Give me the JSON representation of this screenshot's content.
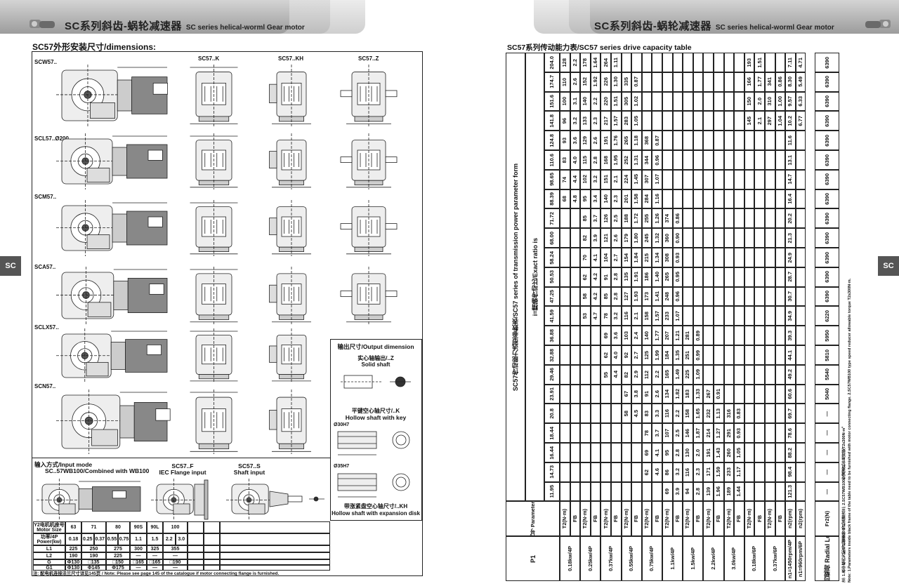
{
  "left_page": {
    "header": {
      "title_cn": "SC系列斜齿-蜗轮减速器",
      "title_en": "SC series helical-worml Gear motor",
      "icon": "gear-motor-icon"
    },
    "section_title": "SC57外形安装尺寸/dimensions:",
    "side_tab": "SC",
    "views": {
      "scw": "SCW57..",
      "k": "SC57..K",
      "kh": "SC57..KH",
      "z": "SC57..Z",
      "scl": "SCL57..Ø200",
      "scm": "SCM57..",
      "sca": "SCA57..",
      "sclx": "SCLX57..",
      "scn": "SCN57.."
    },
    "output_box": {
      "title": "输出尺寸/Output dimension",
      "solid_cn": "实心轴输出/..Z",
      "solid_en": "Solid shaft",
      "hollow_key_cn": "平键空心轴尺寸/..K",
      "hollow_key_en": "Hollow shaft with key",
      "bore1": "Ø30H7",
      "bore2": "Ø35H7",
      "hollow_disk_cn": "带涨紧盘空心轴尺寸/..KH",
      "hollow_disk_en": "Hollow shaft with expansion disk"
    },
    "input_mode": {
      "title": "输入方式/Input mode",
      "wb_label": "SC..57WB100/Combined with WB100",
      "f_label": "SC57..F",
      "f_sub": "IEC Flange input",
      "s_label": "SC57..S",
      "s_sub": "Shaft input"
    },
    "motor_table": {
      "row_headers": [
        "Y2电机机座号 Motor Size",
        "功率/4P Power(kw)",
        "L1",
        "L2",
        "G",
        "G1"
      ],
      "sizes": [
        "63",
        "71",
        "80",
        "90S",
        "90L",
        "100"
      ],
      "powers": [
        "0.18",
        "0.25",
        "0.37",
        "0.55",
        "0.75",
        "1.1",
        "1.5",
        "2.2",
        "3.0"
      ],
      "L1": [
        "225",
        "250",
        "275",
        "300",
        "325",
        "355"
      ],
      "L2": [
        "190",
        "190",
        "225",
        "—",
        "—",
        "—"
      ],
      "G": [
        "Φ130",
        "□135",
        "□150",
        "□165",
        "□165",
        "□190"
      ],
      "G1": [
        "Φ130",
        "Φ145",
        "Φ175",
        "—",
        "—",
        "—"
      ]
    },
    "note": "注: 配电机连接法兰尺寸详见145页 / Note: Please see page 145 of the catalogue if motor connecting flange is furnished."
  },
  "right_page": {
    "header": {
      "title_cn": "SC系列斜齿-蜗轮减速器",
      "title_en": "SC series helical-worml Gear motor",
      "icon": "gear-motor-icon"
    },
    "side_tab": "SC",
    "table_title": "SC57系列传动能力表/SC57 series drive capacity table",
    "vertical_title": "SC57传动能力选型参数表/SC57 series of transmission power parameter form",
    "exact_ratio_label": "i=精确传动比/Exact ratio is",
    "param_code_label": "参数代号 Parameter code",
    "p1_label": "P1",
    "powers": [
      "0.18kw/4P",
      "0.25kw/4P",
      "0.37kw/4P",
      "0.55kw/4P",
      "0.75kw/4P",
      "1.1kw/4P",
      "1.5kw/4P",
      "2.2kw/4P",
      "3.0kw/4P",
      "0.18kw/6P",
      "0.37kw/6P"
    ],
    "speed_labels": [
      "n1=1450rpm/4P",
      "n1=960rpm/6P"
    ],
    "param_labels": {
      "torque": "T2(N·m)",
      "fb": "FB",
      "speed": "n2(rpm)",
      "radial": "Fr2(N)"
    },
    "radial_load_label": "径向载荷 Radial Load",
    "rows": [
      [
        "204.0",
        "128",
        "2.2",
        "178",
        "1.64",
        "264",
        "1.11",
        "",
        "",
        "",
        "",
        "",
        "",
        "",
        "",
        "",
        "",
        "",
        "",
        "193",
        "1.51",
        "",
        "",
        "7.11",
        "4.71",
        "6390"
      ],
      [
        "174.7",
        "110",
        "2.6",
        "152",
        "1.92",
        "226",
        "1.30",
        "335",
        "0.87",
        "",
        "",
        "",
        "",
        "",
        "",
        "",
        "",
        "",
        "",
        "166",
        "1.77",
        "341",
        "0.86",
        "8.30",
        "5.49",
        "6390"
      ],
      [
        "151.6",
        "100",
        "3.1",
        "140",
        "2.2",
        "220",
        "1.51",
        "305",
        "1.02",
        "",
        "",
        "",
        "",
        "",
        "",
        "",
        "",
        "",
        "",
        "150",
        "2.0",
        "310",
        "1.00",
        "9.57",
        "6.33",
        "6390"
      ],
      [
        "141.8",
        "96",
        "3.2",
        "133",
        "2.3",
        "217",
        "1.57",
        "283",
        "1.05",
        "",
        "",
        "",
        "",
        "",
        "",
        "",
        "",
        "",
        "",
        "145",
        "2.1",
        "297",
        "1.04",
        "10.2",
        "6.77",
        "6390"
      ],
      [
        "124.8",
        "93",
        "3.6",
        "129",
        "2.6",
        "191",
        "1.76",
        "265",
        "1.18",
        "368",
        "0.87",
        "",
        "",
        "",
        "",
        "",
        "",
        "",
        "",
        "",
        "",
        "",
        "",
        "11.6",
        "",
        "6390"
      ],
      [
        "110.6",
        "83",
        "4.0",
        "115",
        "2.8",
        "168",
        "1.95",
        "252",
        "1.31",
        "344",
        "0.96",
        "",
        "",
        "",
        "",
        "",
        "",
        "",
        "",
        "",
        "",
        "",
        "",
        "13.1",
        "",
        "6390"
      ],
      [
        "98.65",
        "74",
        "4.4",
        "102",
        "3.2",
        "151",
        "2.1",
        "224",
        "1.45",
        "307",
        "1.07",
        "",
        "",
        "",
        "",
        "",
        "",
        "",
        "",
        "",
        "",
        "",
        "",
        "14.7",
        "",
        "6390"
      ],
      [
        "88.39",
        "68",
        "4.8",
        "95",
        "3.4",
        "140",
        "2.3",
        "201",
        "1.58",
        "284",
        "1.16",
        "",
        "",
        "",
        "",
        "",
        "",
        "",
        "",
        "",
        "",
        "",
        "",
        "16.4",
        "",
        "6390"
      ],
      [
        "71.72",
        "",
        "",
        "85",
        "3.7",
        "126",
        "2.5",
        "188",
        "1.72",
        "255",
        "1.26",
        "374",
        "0.86",
        "",
        "",
        "",
        "",
        "",
        "",
        "",
        "",
        "",
        "",
        "20.2",
        "",
        "6390"
      ],
      [
        "68.00",
        "",
        "",
        "82",
        "3.9",
        "121",
        "2.6",
        "179",
        "1.80",
        "245",
        "1.32",
        "360",
        "0.90",
        "",
        "",
        "",
        "",
        "",
        "",
        "",
        "",
        "",
        "",
        "21.3",
        "",
        "6390"
      ],
      [
        "58.24",
        "",
        "",
        "70",
        "4.1",
        "104",
        "2.7",
        "154",
        "1.84",
        "215",
        "1.34",
        "308",
        "0.93",
        "",
        "",
        "",
        "",
        "",
        "",
        "",
        "",
        "",
        "",
        "24.9",
        "",
        "6390"
      ],
      [
        "50.53",
        "",
        "",
        "62",
        "4.2",
        "91",
        "2.8",
        "135",
        "1.91",
        "186",
        "1.40",
        "265",
        "0.95",
        "",
        "",
        "",
        "",
        "",
        "",
        "",
        "",
        "",
        "",
        "28.7",
        "",
        "6390"
      ],
      [
        "47.25",
        "",
        "",
        "58",
        "4.2",
        "85",
        "2.8",
        "127",
        "1.93",
        "173",
        "1.41",
        "248",
        "0.96",
        "",
        "",
        "",
        "",
        "",
        "",
        "",
        "",
        "",
        "",
        "30.7",
        "",
        "6390"
      ],
      [
        "41.59",
        "",
        "",
        "53",
        "4.7",
        "78",
        "3.2",
        "116",
        "2.1",
        "158",
        "1.57",
        "233",
        "1.07",
        "",
        "",
        "",
        "",
        "",
        "",
        "",
        "",
        "",
        "",
        "34.9",
        "",
        "6220"
      ],
      [
        "36.88",
        "",
        "",
        "",
        "",
        "69",
        "3.6",
        "103",
        "2.4",
        "140",
        "1.77",
        "207",
        "1.21",
        "281",
        "0.89",
        "",
        "",
        "",
        "",
        "",
        "",
        "",
        "",
        "39.3",
        "",
        "5950"
      ],
      [
        "32.88",
        "",
        "",
        "",
        "",
        "62",
        "4.0",
        "92",
        "2.7",
        "125",
        "1.99",
        "184",
        "1.35",
        "251",
        "0.99",
        "",
        "",
        "",
        "",
        "",
        "",
        "",
        "",
        "44.1",
        "",
        "5810"
      ],
      [
        "29.46",
        "",
        "",
        "",
        "",
        "55",
        "4.4",
        "82",
        "2.9",
        "112",
        "2.2",
        "165",
        "1.49",
        "225",
        "1.09",
        "",
        "",
        "",
        "",
        "",
        "",
        "",
        "",
        "49.2",
        "",
        "5540"
      ],
      [
        "23.91",
        "",
        "",
        "",
        "",
        "",
        "",
        "67",
        "3.8",
        "91",
        "2.6",
        "134",
        "1.82",
        "183",
        "1.33",
        "267",
        "0.91",
        "",
        "",
        "",
        "",
        "",
        "",
        "60.6",
        "",
        "5040"
      ],
      [
        "20.8",
        "",
        "",
        "",
        "",
        "",
        "",
        "58",
        "4.5",
        "83",
        "3.3",
        "116",
        "2.2",
        "158",
        "1.65",
        "232",
        "1.13",
        "316",
        "0.83",
        "",
        "",
        "",
        "",
        "69.7",
        "",
        "—"
      ],
      [
        "18.44",
        "",
        "",
        "",
        "",
        "",
        "",
        "",
        "",
        "78",
        "3.7",
        "107",
        "2.5",
        "146",
        "1.87",
        "214",
        "1.27",
        "291",
        "0.93",
        "",
        "",
        "",
        "",
        "78.6",
        "",
        "—"
      ],
      [
        "16.44",
        "",
        "",
        "",
        "",
        "",
        "",
        "",
        "",
        "69",
        "4.1",
        "95",
        "2.8",
        "130",
        "2.0",
        "191",
        "1.43",
        "260",
        "1.05",
        "",
        "",
        "",
        "",
        "88.2",
        "",
        "—"
      ],
      [
        "14.73",
        "",
        "",
        "",
        "",
        "",
        "",
        "",
        "",
        "62",
        "4.6",
        "86",
        "3.2",
        "116",
        "2.3",
        "171",
        "1.59",
        "233",
        "1.17",
        "",
        "",
        "",
        "",
        "98.4",
        "",
        "—"
      ],
      [
        "11.95",
        "",
        "",
        "",
        "",
        "",
        "",
        "",
        "",
        "",
        "",
        "69",
        "3.9",
        "94",
        "2.8",
        "139",
        "1.96",
        "189",
        "1.44",
        "",
        "",
        "",
        "",
        "121.3",
        "",
        "—"
      ]
    ],
    "notes": [
      "注: 1.表中框内为配电机需要带电机连接法兰; 2.SC57WB100型减速机许用扭矩T2≤300N·m。",
      "Note: 1.Parameters inside black frame of the table need to be furnished with motor connecting flange. 2.SC57WB100 type speed reducer allowable torque T2≤300N·m."
    ]
  },
  "colors": {
    "header_band": "#a8a8a8",
    "side_tab": "#555555",
    "line": "#222222"
  }
}
